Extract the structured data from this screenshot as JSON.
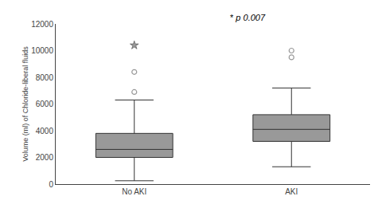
{
  "chart_data": {
    "type": "box",
    "categories": [
      "No AKI",
      "AKI"
    ],
    "boxes": [
      {
        "median": 2600,
        "q1": 2000,
        "q3": 3800,
        "whisker_low": 250,
        "whisker_high": 6300,
        "outliers": [
          6900,
          8400
        ],
        "far_outliers": [
          10400
        ]
      },
      {
        "median": 4100,
        "q1": 3200,
        "q3": 5200,
        "whisker_low": 1300,
        "whisker_high": 7200,
        "outliers": [
          9500,
          10000
        ],
        "far_outliers": []
      }
    ],
    "color": "#999999",
    "ylabel": "Volume (ml) of Chloride-liberal fluids",
    "ylim": [
      0,
      12000
    ],
    "yticks": [
      0,
      2000,
      4000,
      6000,
      8000,
      10000,
      12000
    ],
    "annotations": [
      "*",
      "p 0.007"
    ],
    "grid": false
  }
}
